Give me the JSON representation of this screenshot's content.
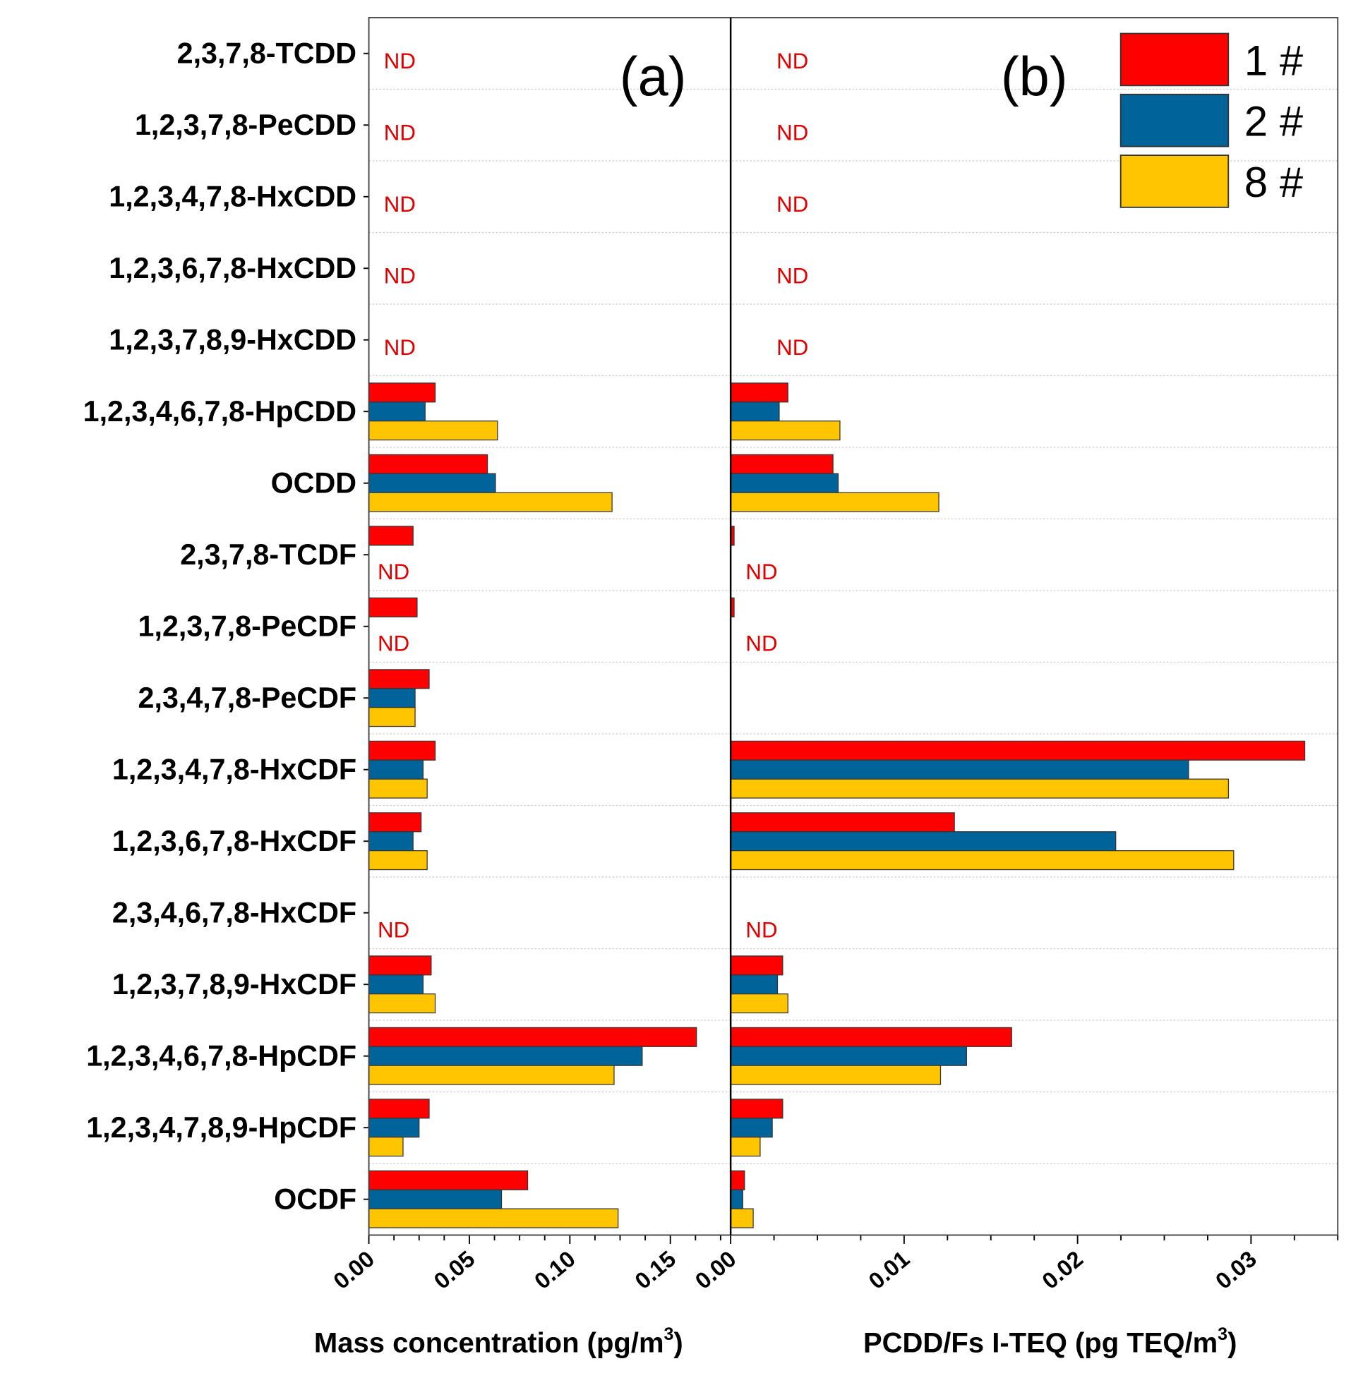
{
  "chart_data": {
    "type": "bar",
    "orientation": "horizontal",
    "categories": [
      "2,3,7,8-TCDD",
      "1,2,3,7,8-PeCDD",
      "1,2,3,4,7,8-HxCDD",
      "1,2,3,6,7,8-HxCDD",
      "1,2,3,7,8,9-HxCDD",
      "1,2,3,4,6,7,8-HpCDD",
      "OCDD",
      "2,3,7,8-TCDF",
      "1,2,3,7,8-PeCDF",
      "2,3,4,7,8-PeCDF",
      "1,2,3,4,7,8-HxCDF",
      "1,2,3,6,7,8-HxCDF",
      "2,3,4,6,7,8-HxCDF",
      "1,2,3,7,8,9-HxCDF",
      "1,2,3,4,6,7,8-HpCDF",
      "1,2,3,4,7,8,9-HpCDF",
      "OCDF"
    ],
    "nd_label": "ND",
    "legend": {
      "placement": "top-right",
      "entries": [
        "1 #",
        "2 #",
        "8 #"
      ]
    },
    "colors": [
      "#ff0000",
      "#00649b",
      "#ffc600"
    ],
    "panels": [
      {
        "label": "(a)",
        "xlabel": "Mass concentration (pg/m",
        "xlabel_sup": "3",
        "xlabel_end": ")",
        "xlim": [
          0,
          0.18
        ],
        "xticks": [
          0,
          0.05,
          0.1,
          0.15
        ],
        "xtick_labels": [
          "0.00",
          "0.05",
          "0.10",
          "0.15"
        ],
        "series": [
          {
            "name": "1 #",
            "values": [
              null,
              null,
              null,
              null,
              null,
              0.033,
              0.059,
              0.022,
              0.024,
              0.03,
              0.033,
              0.026,
              null,
              0.031,
              0.163,
              0.03,
              0.079
            ]
          },
          {
            "name": "2 #",
            "values": [
              null,
              null,
              null,
              null,
              null,
              0.028,
              0.063,
              null,
              null,
              0.023,
              0.027,
              0.022,
              null,
              0.027,
              0.136,
              0.025,
              0.066
            ]
          },
          {
            "name": "8 #",
            "values": [
              null,
              null,
              null,
              null,
              null,
              0.064,
              0.121,
              null,
              null,
              0.023,
              0.029,
              0.029,
              null,
              0.033,
              0.122,
              0.017,
              0.124
            ]
          }
        ],
        "nd": [
          true,
          true,
          true,
          true,
          true,
          false,
          false,
          true,
          true,
          false,
          false,
          false,
          true,
          false,
          false,
          false,
          false
        ]
      },
      {
        "label": "(b)",
        "xlabel": "PCDD/Fs I-TEQ (pg TEQ/m",
        "xlabel_sup": "3",
        "xlabel_end": ")",
        "xlim": [
          0,
          0.035
        ],
        "xticks": [
          0,
          0.01,
          0.02,
          0.03
        ],
        "xtick_labels": [
          "0.00",
          "0.01",
          "0.02",
          "0.03"
        ],
        "series": [
          {
            "name": "1 #",
            "values": [
              null,
              null,
              null,
              null,
              null,
              0.0033,
              0.0059,
              0.0002,
              0.0002,
              null,
              0.0331,
              0.0129,
              null,
              0.003,
              0.0162,
              0.003,
              0.0008
            ]
          },
          {
            "name": "2 #",
            "values": [
              null,
              null,
              null,
              null,
              null,
              0.0028,
              0.0062,
              null,
              null,
              null,
              0.0264,
              0.0222,
              null,
              0.0027,
              0.0136,
              0.0024,
              0.0007
            ]
          },
          {
            "name": "8 #",
            "values": [
              null,
              null,
              null,
              null,
              null,
              0.0063,
              0.012,
              null,
              null,
              null,
              0.0287,
              0.029,
              null,
              0.0033,
              0.0121,
              0.0017,
              0.0013
            ]
          }
        ],
        "nd": [
          true,
          true,
          true,
          true,
          true,
          false,
          false,
          true,
          true,
          false,
          false,
          false,
          true,
          false,
          false,
          false,
          false
        ]
      }
    ]
  }
}
